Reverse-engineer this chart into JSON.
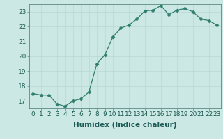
{
  "x": [
    0,
    1,
    2,
    3,
    4,
    5,
    6,
    7,
    8,
    9,
    10,
    11,
    12,
    13,
    14,
    15,
    16,
    17,
    18,
    19,
    20,
    21,
    22,
    23
  ],
  "y": [
    17.5,
    17.4,
    17.4,
    16.8,
    16.65,
    17.0,
    17.15,
    17.6,
    19.5,
    20.1,
    21.3,
    21.9,
    22.1,
    22.5,
    23.05,
    23.1,
    23.4,
    22.8,
    23.1,
    23.2,
    23.0,
    22.5,
    22.4,
    22.1
  ],
  "xlabel": "Humidex (Indice chaleur)",
  "xlim": [
    -0.5,
    23.5
  ],
  "ylim": [
    16.5,
    23.5
  ],
  "yticks": [
    17,
    18,
    19,
    20,
    21,
    22,
    23
  ],
  "xticks": [
    0,
    1,
    2,
    3,
    4,
    5,
    6,
    7,
    8,
    9,
    10,
    11,
    12,
    13,
    14,
    15,
    16,
    17,
    18,
    19,
    20,
    21,
    22,
    23
  ],
  "line_color": "#2e7d6e",
  "marker": "D",
  "marker_size": 2.5,
  "bg_color": "#cce8e4",
  "grid_color": "#b8d8d4",
  "tick_label_fontsize": 6.5,
  "xlabel_fontsize": 7.5
}
